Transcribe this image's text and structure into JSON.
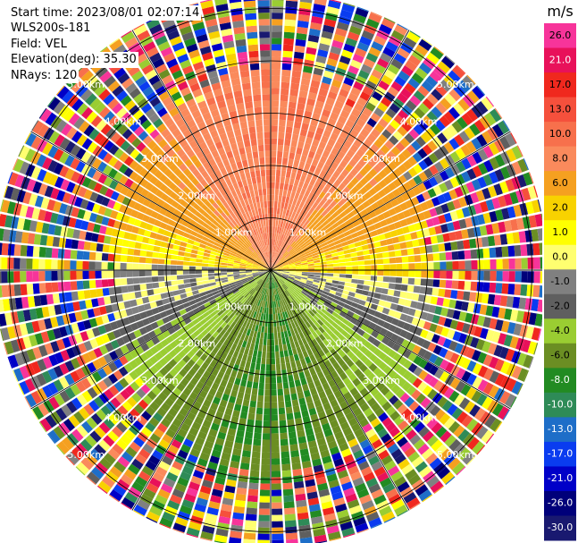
{
  "header": {
    "start_time": "Start time: 2023/08/01 02:07:14",
    "instrument": "WLS200s-181",
    "field": "Field: VEL",
    "elevation": "Elevation(deg): 35.30",
    "nrays": "NRays: 120"
  },
  "colorbar": {
    "unit": "m/s",
    "ticks": [
      "26.0",
      "21.0",
      "17.0",
      "13.0",
      "10.0",
      "8.0",
      "6.0",
      "2.0",
      "1.0",
      "0.0",
      "-1.0",
      "-2.0",
      "-4.0",
      "-6.0",
      "-8.0",
      "-10.0",
      "-13.0",
      "-17.0",
      "-21.0",
      "-26.0",
      "-30.0"
    ],
    "colors": [
      "#f7349a",
      "#e8115a",
      "#f0281e",
      "#f5503c",
      "#f7704c",
      "#fa8a5c",
      "#f5a020",
      "#f8d200",
      "#ffff00",
      "#ffff70",
      "#808080",
      "#5f5f5f",
      "#9acd32",
      "#6b8e23",
      "#228b22",
      "#2e8b57",
      "#1e6ec8",
      "#0a3cf0",
      "#0000c8",
      "#00007a",
      "#191970"
    ]
  },
  "range_rings": {
    "labels": [
      "1.00km",
      "2.00km",
      "3.00km",
      "4.00km",
      "5.00km"
    ]
  },
  "chart_data": {
    "type": "heatmap",
    "title": "",
    "projection": "polar (PPI)",
    "field": "VEL",
    "units": "m/s",
    "n_rays": 120,
    "elevation_deg": 35.3,
    "ring_ranges_km": [
      1,
      2,
      3,
      4,
      5
    ],
    "max_range_km": 5.3,
    "color_limits": [
      -30,
      26
    ],
    "pattern": {
      "north_sector_velocity_ms": 8,
      "east_west_velocity_ms": 1,
      "south_sector_velocity_ms": -8,
      "noise_beyond_km": 4.0
    }
  }
}
